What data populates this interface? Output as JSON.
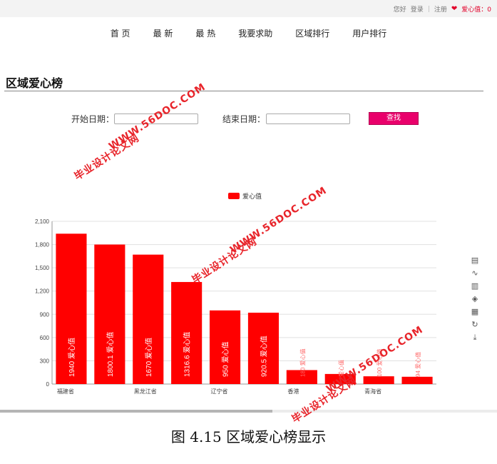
{
  "topbar": {
    "greeting": "您好",
    "login": "登录",
    "register": "注册",
    "love_label": "爱心值：0"
  },
  "nav": [
    "首 页",
    "最 新",
    "最 热",
    "我要求助",
    "区域排行",
    "用户排行"
  ],
  "page_title": "区域爱心榜",
  "form": {
    "start_label": "开始日期：",
    "end_label": "结束日期：",
    "search_label": "查找"
  },
  "toolbox": [
    "data-view-icon",
    "line-chart-icon",
    "bar-chart-icon",
    "stack-icon",
    "tiled-icon",
    "refresh-icon",
    "download-icon"
  ],
  "watermarks": {
    "a": "WWW.56DOC.COM",
    "b": "毕业设计论文网"
  },
  "caption": "图 4.15 区域爱心榜显示",
  "chart_data": {
    "type": "bar",
    "title": "",
    "legend": [
      "爱心值"
    ],
    "legend_position": "top",
    "categories": [
      "福建省",
      "",
      "黑龙江省",
      "",
      "辽宁省",
      "",
      "香港",
      "",
      "青海省",
      ""
    ],
    "x_tick_labels": [
      "福建省",
      "黑龙江省",
      "辽宁省",
      "香港",
      "青海省"
    ],
    "series": [
      {
        "name": "爱心值",
        "color": "#ff0000",
        "values": [
          1940,
          1800.1,
          1670,
          1316.6,
          950,
          920.5,
          180,
          130,
          100,
          94
        ]
      }
    ],
    "value_labels": [
      "1940 爱心值",
      "1800.1 爱心值",
      "1670 爱心值",
      "1316.6 爱心值",
      "950 爱心值",
      "920.5 爱心值",
      "180 爱心值",
      "爱心值",
      "100 爱心值",
      "94 爱心值"
    ],
    "ylim": [
      0,
      2100
    ],
    "yticks": [
      "0",
      "300",
      "600",
      "900",
      "1,200",
      "1,500",
      "1,800",
      "2,100"
    ],
    "grid": true
  }
}
